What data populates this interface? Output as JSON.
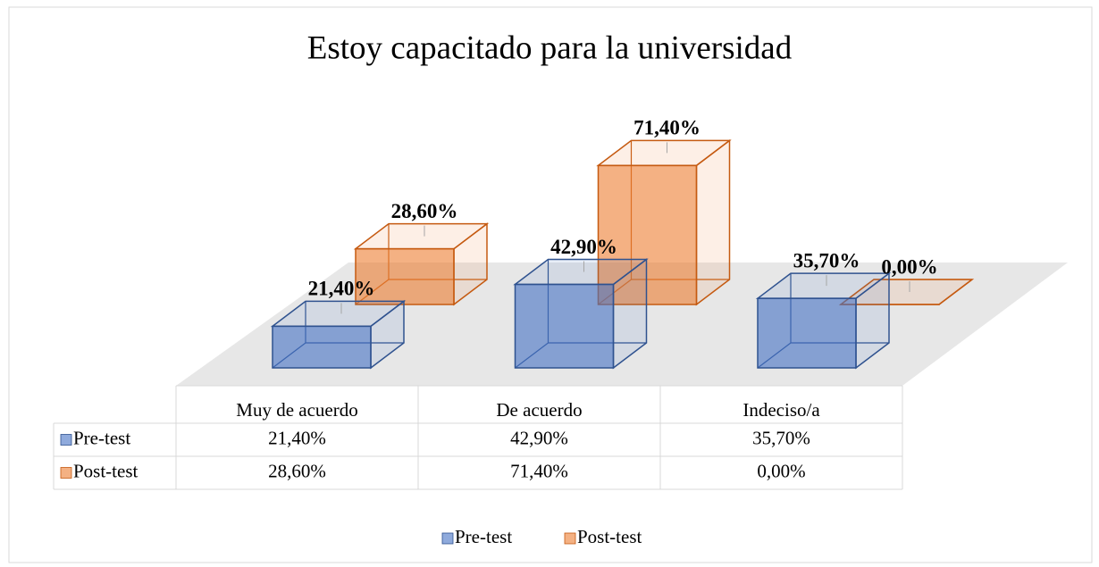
{
  "chart_data": {
    "type": "bar3d",
    "title": "Estoy capacitado para la universidad",
    "categories": [
      "Muy de acuerdo",
      "De acuerdo",
      "Indeciso/a"
    ],
    "series": [
      {
        "name": "Pre-test",
        "color": "#4472c4",
        "values": [
          21.4,
          42.9,
          35.7
        ],
        "value_labels": [
          "21,40%",
          "42,90%",
          "35,70%"
        ]
      },
      {
        "name": "Post-test",
        "color": "#ed7d31",
        "values": [
          28.6,
          71.4,
          0
        ],
        "value_labels": [
          "28,60%",
          "71,40%",
          "0,00%"
        ]
      }
    ],
    "legend": "bottom",
    "data_table": true
  }
}
